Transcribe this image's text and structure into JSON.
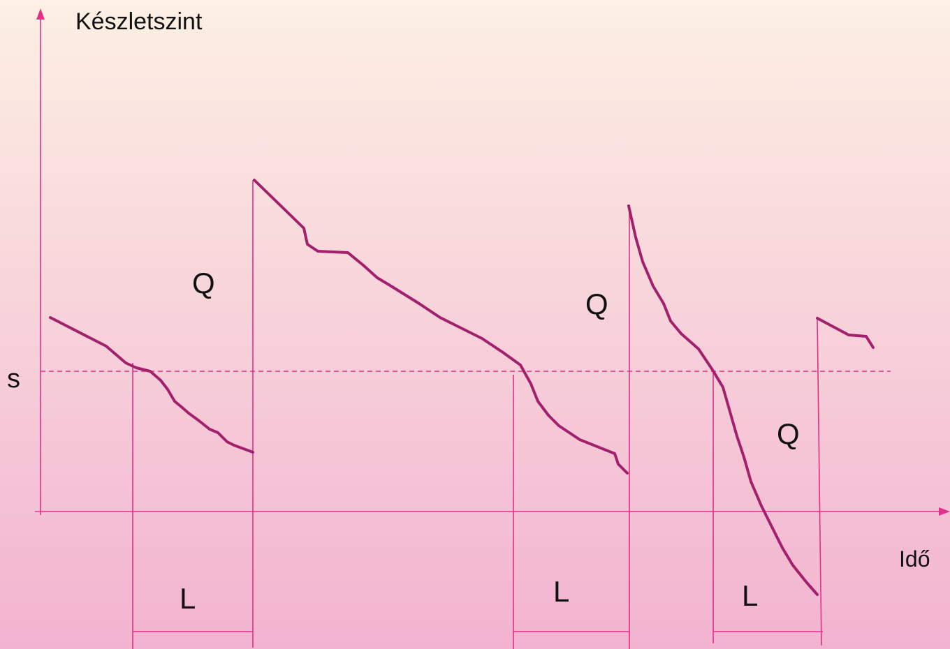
{
  "y_axis_label": "Készletszint",
  "x_axis_label": "Idő",
  "reorder_level_label": "s",
  "order_quantity_labels": [
    "Q",
    "Q",
    "Q"
  ],
  "lead_time_labels": [
    "L",
    "L",
    "L"
  ]
}
